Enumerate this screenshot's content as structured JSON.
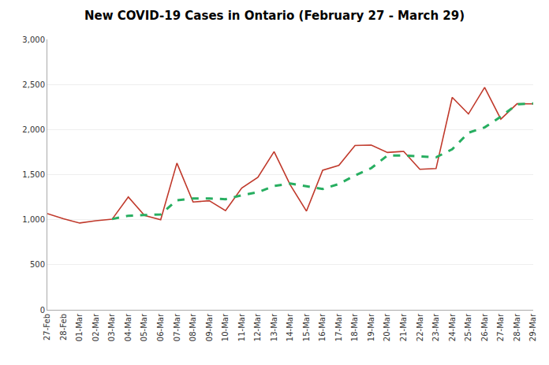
{
  "chart_data": {
    "type": "line",
    "title": "New COVID-19 Cases in Ontario (February 27 - March 29)",
    "categories": [
      "27-Feb",
      "28-Feb",
      "01-Mar",
      "02-Mar",
      "03-Mar",
      "04-Mar",
      "05-Mar",
      "06-Mar",
      "07-Mar",
      "08-Mar",
      "09-Mar",
      "10-Mar",
      "11-Mar",
      "12-Mar",
      "13-Mar",
      "14-Mar",
      "15-Mar",
      "16-Mar",
      "17-Mar",
      "18-Mar",
      "19-Mar",
      "20-Mar",
      "21-Mar",
      "22-Mar",
      "23-Mar",
      "24-Mar",
      "25-Mar",
      "26-Mar",
      "27-Mar",
      "28-Mar",
      "29-Mar"
    ],
    "series": [
      {
        "color": "#c0392b",
        "line_style": "solid",
        "values": [
          1068,
          1010,
          963,
          989,
          1005,
          1252,
          1047,
          1000,
          1628,
          1196,
          1210,
          1100,
          1350,
          1470,
          1755,
          1385,
          1095,
          1548,
          1603,
          1824,
          1828,
          1746,
          1758,
          1559,
          1567,
          2357,
          2173,
          2467,
          2116,
          2286,
          2285
        ]
      },
      {
        "color": "#27ae60",
        "line_style": "dashed",
        "values": [
          null,
          null,
          null,
          null,
          1007,
          1044,
          1051,
          1059,
          1216,
          1235,
          1236,
          1227,
          1271,
          1305,
          1374,
          1401,
          1371,
          1340,
          1396,
          1491,
          1572,
          1712,
          1712,
          1699,
          1692,
          1781,
          1965,
          2024,
          2143,
          2280,
          2289
        ]
      }
    ],
    "ylim": [
      0,
      3000
    ],
    "yticks": [
      0,
      500,
      {
        "value": 1000,
        "label": "1,000"
      },
      {
        "value": 1500,
        "label": "1,500"
      },
      {
        "value": 2000,
        "label": "2,000"
      },
      {
        "value": 2500,
        "label": "2,500"
      },
      {
        "value": 3000,
        "label": "3,000"
      }
    ],
    "grid": true
  }
}
